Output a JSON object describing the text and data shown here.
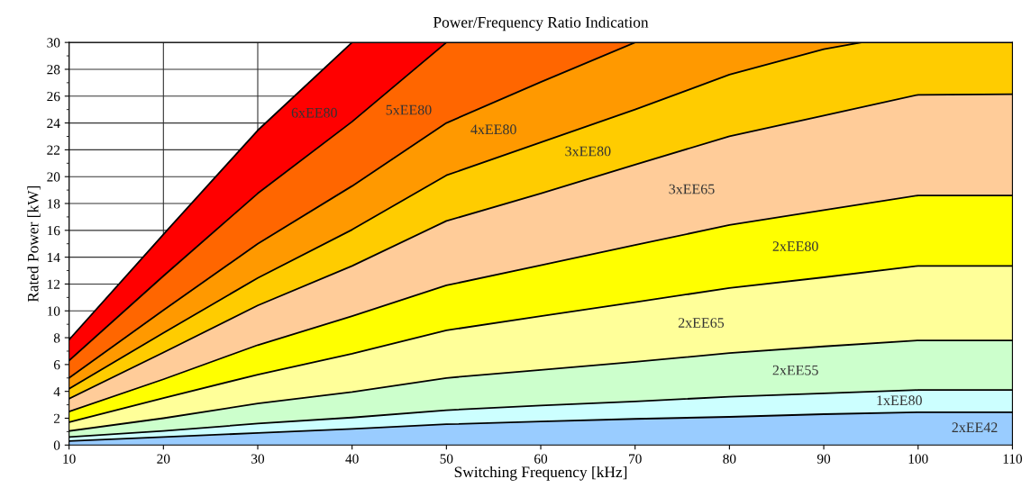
{
  "chart_data": {
    "type": "area",
    "title": "Power/Frequency Ratio Indication",
    "xlabel": "Switching Frequency [kHz]",
    "ylabel": "Rated Power [kW]",
    "x": [
      10,
      20,
      30,
      40,
      50,
      60,
      70,
      80,
      90,
      100,
      110
    ],
    "series": [
      {
        "name": "2xEE42",
        "color": "#99ccff",
        "values": [
          0.3,
          0.6,
          0.9,
          1.2,
          1.55,
          1.75,
          1.95,
          2.1,
          2.3,
          2.45,
          2.45
        ]
      },
      {
        "name": "1xEE80",
        "color": "#ccffff",
        "values": [
          0.6,
          1.05,
          1.6,
          2.05,
          2.6,
          2.95,
          3.25,
          3.6,
          3.85,
          4.1,
          4.1
        ]
      },
      {
        "name": "2xEE55",
        "color": "#ccffcc",
        "values": [
          1.05,
          2.0,
          3.1,
          3.95,
          5.0,
          5.6,
          6.2,
          6.85,
          7.35,
          7.8,
          7.8
        ]
      },
      {
        "name": "2xEE65",
        "color": "#ffff99",
        "values": [
          1.7,
          3.5,
          5.25,
          6.8,
          8.55,
          9.6,
          10.65,
          11.7,
          12.5,
          13.35,
          13.35
        ]
      },
      {
        "name": "2xEE80",
        "color": "#ffff00",
        "values": [
          2.5,
          4.9,
          7.45,
          9.6,
          11.9,
          13.4,
          14.9,
          16.4,
          17.5,
          18.6,
          18.6
        ]
      },
      {
        "name": "3xEE65",
        "color": "#ffcc99",
        "values": [
          3.45,
          6.9,
          10.4,
          13.35,
          16.7,
          18.75,
          20.9,
          23.0,
          24.55,
          26.1,
          26.15
        ]
      },
      {
        "name": "3xEE80",
        "color": "#ffcc00",
        "x": [
          10,
          20,
          30,
          40,
          50,
          60,
          70,
          80,
          90,
          94,
          100,
          110
        ],
        "values": [
          4.2,
          8.35,
          12.45,
          16.05,
          20.1,
          22.55,
          25.0,
          27.6,
          29.5,
          30,
          30,
          30
        ]
      },
      {
        "name": "4xEE80",
        "color": "#ff9900",
        "values": [
          5.0,
          10.05,
          15.0,
          19.3,
          24.0,
          27.05,
          30,
          30,
          30,
          30,
          30
        ]
      },
      {
        "name": "5xEE80",
        "color": "#ff6600",
        "values": [
          6.3,
          12.6,
          18.75,
          24.1,
          30,
          30,
          30,
          30,
          30,
          30,
          30
        ]
      },
      {
        "name": "6xEE80",
        "color": "#ff0000",
        "values": [
          7.85,
          15.7,
          23.45,
          30,
          30,
          30,
          30,
          30,
          30,
          30,
          30
        ]
      }
    ],
    "xlim": [
      10,
      110
    ],
    "xticks": [
      10,
      20,
      30,
      40,
      50,
      60,
      70,
      80,
      90,
      100,
      110
    ],
    "ylim": [
      0,
      30
    ],
    "yticks": [
      0,
      2,
      4,
      6,
      8,
      10,
      12,
      14,
      16,
      18,
      20,
      22,
      24,
      26,
      28,
      30
    ],
    "grid": true,
    "legend": false
  }
}
